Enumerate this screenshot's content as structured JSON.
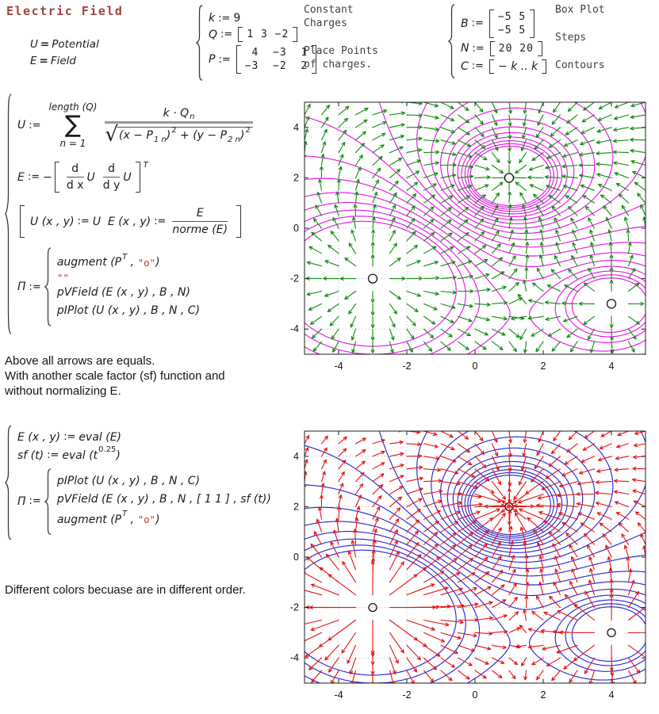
{
  "header": {
    "title": "Electric Field",
    "defs": [
      {
        "lhs": "U",
        "op": "=",
        "rhs": "Potential"
      },
      {
        "lhs": "E",
        "op": "=",
        "rhs": "Field"
      }
    ],
    "group1": {
      "k_lhs": "k",
      "k_op": ":=",
      "k_rhs": "9",
      "q_lhs": "Q",
      "q_op": ":=",
      "q_row": "1 3 −2",
      "p_lhs": "P",
      "p_op": ":=",
      "p_rows": [
        " 4  −3  1",
        "−3  −2  2"
      ],
      "comment_charges": "Constant\nCharges",
      "comment_points": "Place Points\nof charges."
    },
    "group2": {
      "b_lhs": "B",
      "b_op": ":=",
      "b_rows": [
        "−5 5",
        "−5 5"
      ],
      "n_lhs": "N",
      "n_op": ":=",
      "n_row": "20 20",
      "c_lhs": "C",
      "c_op": ":=",
      "c_row": "− k .. k",
      "comment_b": "Box Plot",
      "comment_n": "Steps",
      "comment_c": "Contours"
    }
  },
  "block1": {
    "u": {
      "lhs": "U",
      "op": ":=",
      "sum_top": "length (Q)",
      "sum_sym": "∑",
      "sum_bot": "n = 1",
      "num": "k · Q",
      "num_sub": "n",
      "sqrt": "√",
      "d1": "(x − P",
      "s1": "1 n",
      "d2": ")",
      "p1": "2",
      "plus": " + ",
      "d3": "(y − P",
      "s2": "2 n",
      "d4": ")",
      "p2": "2"
    },
    "e": {
      "lhs": "E",
      "op": ":=",
      "minus": "−",
      "dn1": "d",
      "dd1": "d x",
      "u1": "U",
      "dn2": "d",
      "dd2": "d y",
      "u2": "U",
      "sup": "T"
    },
    "mid": {
      "t1": "U (x , y)",
      "op1": ":=",
      "t2": "U  ",
      "t3": "E (x , y)",
      "op2": ":=",
      "num": "E",
      "den": "norme (E)"
    },
    "pi": {
      "lhs": "Π",
      "op": ":=",
      "r1a": "augment (P",
      "r1sup": "T",
      "r1b": " , ",
      "r1str": "\"o\"",
      "r1c": ")",
      "r2str": "\"\"",
      "r3": "pVField (E (x , y) , B , N)",
      "r4": "pIPlot (U (x , y) , B , N , C)"
    }
  },
  "block2": {
    "l1": {
      "lhs": "E (x , y)",
      "op": ":=",
      "rhs": "eval (E)"
    },
    "l2": {
      "lhs": "sf (t)",
      "op": ":=",
      "rhs_a": "eval (t",
      "rhs_sup": "0.25",
      "rhs_b": ")"
    },
    "pi": {
      "lhs": "Π",
      "op": ":=",
      "r1": "pIPlot (U (x , y) , B , N , C)",
      "r2": "pVField (E (x , y) , B , N , [ 1 1 ] , sf (t))",
      "r3a": "augment (P",
      "r3sup": "T",
      "r3b": " , ",
      "r3str": "\"o\"",
      "r3c": ")"
    }
  },
  "notes": {
    "note1": "Above all arrows are equals.\nWith another scale factor (sf) function and\nwithout normalizing E.",
    "note2": "Different colors becuase are in different order."
  },
  "chart_data": [
    {
      "type": "vector-field-with-contours",
      "description": "Normalized electric field arrows (all equal length) with equipotential contours",
      "x_range": [
        -5,
        5
      ],
      "y_range": [
        -5,
        5
      ],
      "x_ticks": [
        -4,
        -2,
        0,
        2,
        4
      ],
      "y_ticks": [
        -4,
        -2,
        0,
        2,
        4
      ],
      "k": 9,
      "charges": [
        {
          "q": 1,
          "x": 4,
          "y": -3
        },
        {
          "q": 3,
          "x": -3,
          "y": -2
        },
        {
          "q": -2,
          "x": 1,
          "y": 2
        }
      ],
      "vector_grid_steps": [
        20,
        20
      ],
      "contour_levels": {
        "min": -9,
        "max": 9,
        "step": 1
      },
      "normalized_arrows": true,
      "scale_exponent": 1,
      "arrow_color": "#118a11",
      "contour_color": "#e816e8",
      "marker_symbol": "o",
      "marker_fill": "#ffffff",
      "markers_on_top": true,
      "grid": true
    },
    {
      "type": "vector-field-with-contours",
      "description": "Field arrows scaled by sf(t)=t^0.25 (not normalized) with equipotential contours",
      "x_range": [
        -5,
        5
      ],
      "y_range": [
        -5,
        5
      ],
      "x_ticks": [
        -4,
        -2,
        0,
        2,
        4
      ],
      "y_ticks": [
        -4,
        -2,
        0,
        2,
        4
      ],
      "k": 9,
      "charges": [
        {
          "q": 1,
          "x": 4,
          "y": -3
        },
        {
          "q": 3,
          "x": -3,
          "y": -2
        },
        {
          "q": -2,
          "x": 1,
          "y": 2
        }
      ],
      "vector_grid_steps": [
        20,
        20
      ],
      "contour_levels": {
        "min": -9,
        "max": 9,
        "step": 1
      },
      "normalized_arrows": false,
      "scale_exponent": 0.25,
      "arrow_color": "#e21313",
      "contour_color": "#2929cf",
      "marker_symbol": "o",
      "marker_fill": "none",
      "markers_on_top": false,
      "grid": true
    }
  ]
}
